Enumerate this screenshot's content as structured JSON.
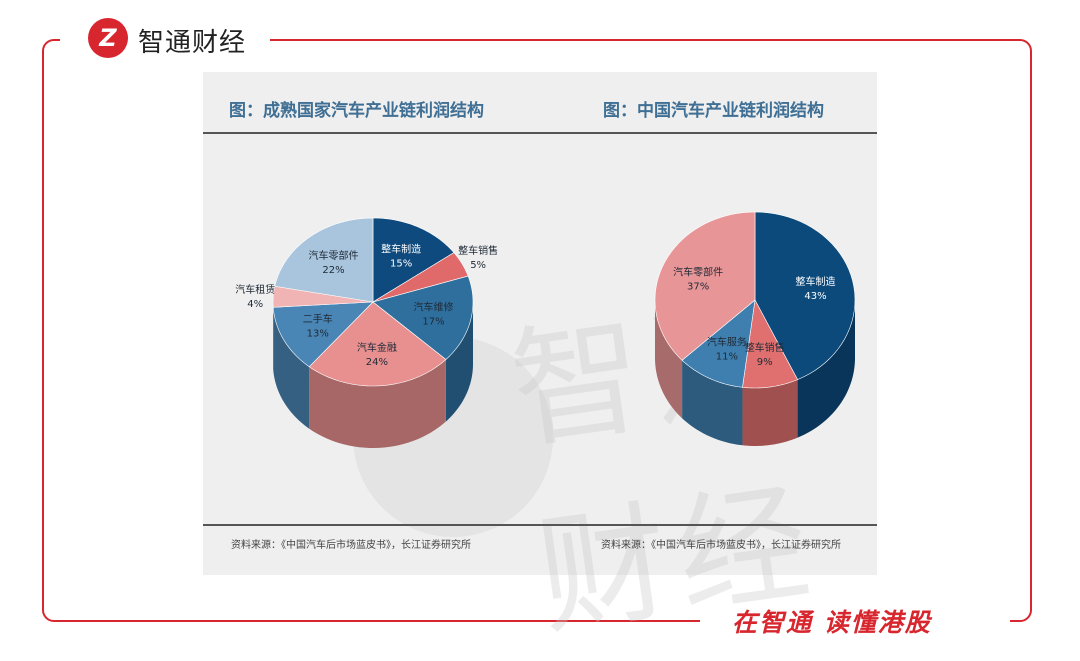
{
  "brand": {
    "logo_mark": "Z",
    "name": "智通财经",
    "slogan": "在智通 读懂港股",
    "accent": "#d8262e"
  },
  "source_left": "资料来源：《中国汽车后市场蓝皮书》，长江证券研究所",
  "source_right": "资料来源：《中国汽车后市场蓝皮书》，长江证券研究所",
  "chart_data": [
    {
      "type": "pie",
      "title": "图：成熟国家汽车产业链利润结构",
      "categories": [
        "整车制造",
        "整车销售",
        "汽车维修",
        "汽车金融",
        "二手车",
        "汽车租赁",
        "汽车零部件"
      ],
      "values": [
        15,
        5,
        17,
        24,
        13,
        4,
        22
      ],
      "labels": [
        "15%",
        "5%",
        "17%",
        "24%",
        "13%",
        "4%",
        "22%"
      ],
      "colors": [
        "#0e4a7e",
        "#e06a6a",
        "#2f6f9e",
        "#e89090",
        "#4a86b5",
        "#f1b4b4",
        "#a9c5de"
      ]
    },
    {
      "type": "pie",
      "title": "图：中国汽车产业链利润结构",
      "categories": [
        "整车制造",
        "整车销售",
        "汽车服务",
        "汽车零部件"
      ],
      "values": [
        43,
        9,
        11,
        37
      ],
      "labels": [
        "43%",
        "9%",
        "11%",
        "37%"
      ],
      "colors": [
        "#0c4a7c",
        "#e07070",
        "#3e7fb0",
        "#e89597"
      ]
    }
  ]
}
